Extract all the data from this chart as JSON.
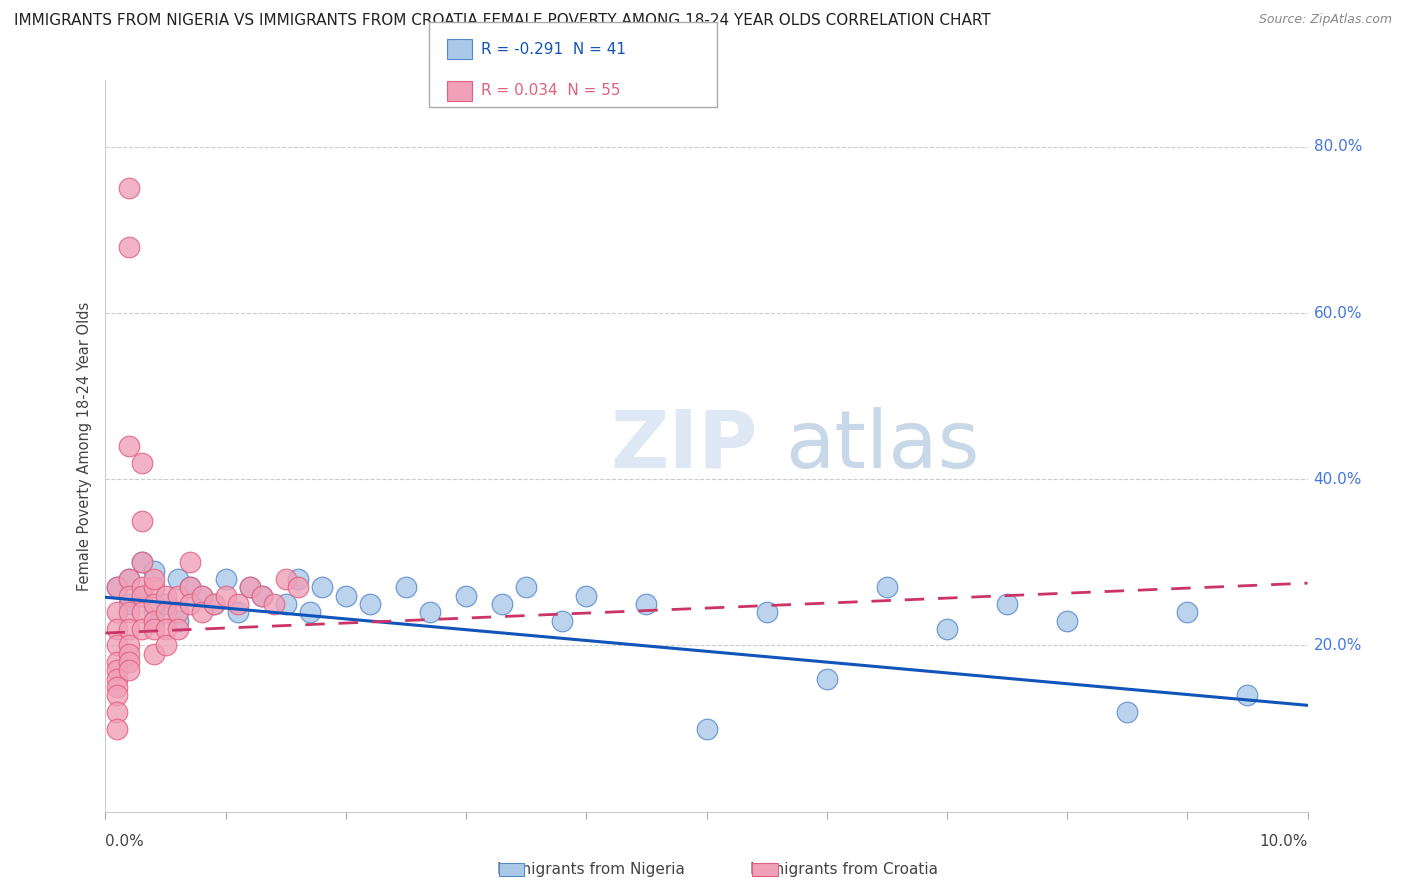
{
  "title": "IMMIGRANTS FROM NIGERIA VS IMMIGRANTS FROM CROATIA FEMALE POVERTY AMONG 18-24 YEAR OLDS CORRELATION CHART",
  "source": "Source: ZipAtlas.com",
  "ylabel": "Female Poverty Among 18-24 Year Olds",
  "watermark_zip": "ZIP",
  "watermark_atlas": "atlas",
  "legend_nigeria": "R = -0.291  N = 41",
  "legend_croatia": "R = 0.034  N = 55",
  "nigeria_fill": "#aac8e8",
  "nigeria_edge": "#5588cc",
  "croatia_fill": "#f0a0b8",
  "croatia_edge": "#e06080",
  "nigeria_line_color": "#1155bb",
  "croatia_line_color": "#cc3366",
  "nigeria_scatter_x": [
    0.001,
    0.002,
    0.002,
    0.003,
    0.003,
    0.004,
    0.004,
    0.005,
    0.006,
    0.006,
    0.007,
    0.008,
    0.009,
    0.01,
    0.011,
    0.012,
    0.013,
    0.015,
    0.016,
    0.017,
    0.018,
    0.02,
    0.022,
    0.025,
    0.027,
    0.03,
    0.033,
    0.035,
    0.038,
    0.04,
    0.045,
    0.05,
    0.055,
    0.06,
    0.065,
    0.07,
    0.075,
    0.08,
    0.085,
    0.09,
    0.095
  ],
  "nigeria_scatter_y": [
    0.27,
    0.25,
    0.28,
    0.26,
    0.3,
    0.24,
    0.29,
    0.25,
    0.28,
    0.23,
    0.27,
    0.26,
    0.25,
    0.28,
    0.24,
    0.27,
    0.26,
    0.25,
    0.28,
    0.24,
    0.27,
    0.26,
    0.25,
    0.27,
    0.24,
    0.26,
    0.25,
    0.27,
    0.23,
    0.26,
    0.25,
    0.1,
    0.24,
    0.16,
    0.27,
    0.22,
    0.25,
    0.23,
    0.12,
    0.24,
    0.14
  ],
  "croatia_scatter_x": [
    0.001,
    0.001,
    0.001,
    0.001,
    0.001,
    0.001,
    0.001,
    0.001,
    0.001,
    0.001,
    0.001,
    0.002,
    0.002,
    0.002,
    0.002,
    0.002,
    0.002,
    0.002,
    0.002,
    0.002,
    0.002,
    0.002,
    0.003,
    0.003,
    0.003,
    0.003,
    0.003,
    0.003,
    0.003,
    0.004,
    0.004,
    0.004,
    0.004,
    0.004,
    0.004,
    0.005,
    0.005,
    0.005,
    0.005,
    0.006,
    0.006,
    0.006,
    0.007,
    0.007,
    0.007,
    0.008,
    0.008,
    0.009,
    0.01,
    0.011,
    0.012,
    0.013,
    0.014,
    0.015,
    0.016
  ],
  "croatia_scatter_y": [
    0.27,
    0.24,
    0.22,
    0.2,
    0.18,
    0.17,
    0.16,
    0.15,
    0.14,
    0.12,
    0.1,
    0.28,
    0.26,
    0.24,
    0.22,
    0.2,
    0.19,
    0.18,
    0.17,
    0.75,
    0.68,
    0.44,
    0.27,
    0.26,
    0.24,
    0.22,
    0.35,
    0.42,
    0.3,
    0.27,
    0.25,
    0.23,
    0.22,
    0.19,
    0.28,
    0.26,
    0.24,
    0.22,
    0.2,
    0.26,
    0.24,
    0.22,
    0.27,
    0.25,
    0.3,
    0.26,
    0.24,
    0.25,
    0.26,
    0.25,
    0.27,
    0.26,
    0.25,
    0.28,
    0.27
  ],
  "xlim": [
    0.0,
    0.1
  ],
  "ylim": [
    0.0,
    0.88
  ],
  "ytick_vals": [
    0.2,
    0.4,
    0.6,
    0.8
  ],
  "ytick_labels": [
    "20.0%",
    "40.0%",
    "60.0%",
    "80.0%"
  ],
  "grid_color": "#cccccc",
  "bg_color": "#ffffff",
  "title_fontsize": 11,
  "source_fontsize": 9,
  "ng_trend": [
    -1.3,
    0.258
  ],
  "cr_trend": [
    0.6,
    0.215
  ]
}
